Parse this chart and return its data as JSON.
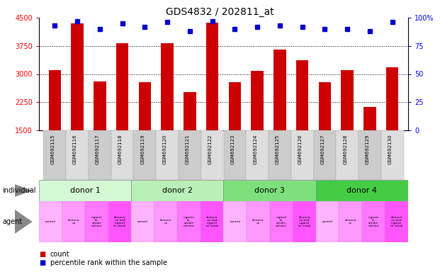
{
  "title": "GDS4832 / 202811_at",
  "samples": [
    "GSM692115",
    "GSM692116",
    "GSM692117",
    "GSM692118",
    "GSM692119",
    "GSM692120",
    "GSM692121",
    "GSM692122",
    "GSM692123",
    "GSM692124",
    "GSM692125",
    "GSM692126",
    "GSM692127",
    "GSM692128",
    "GSM692129",
    "GSM692130"
  ],
  "counts": [
    3100,
    4350,
    2800,
    3820,
    2780,
    3820,
    2520,
    4370,
    2780,
    3080,
    3660,
    3360,
    2780,
    3100,
    2120,
    3180
  ],
  "percentile_ranks": [
    93,
    97,
    90,
    95,
    92,
    96,
    88,
    97,
    90,
    92,
    93,
    92,
    90,
    90,
    88,
    96
  ],
  "bar_color": "#cc0000",
  "dot_color": "#0000cc",
  "ylim_left": [
    1500,
    4500
  ],
  "ylim_right": [
    0,
    100
  ],
  "yticks_left": [
    1500,
    2250,
    3000,
    3750,
    4500
  ],
  "yticks_right": [
    0,
    25,
    50,
    75,
    100
  ],
  "donor_labels": [
    "donor 1",
    "donor 2",
    "donor 3",
    "donor 4"
  ],
  "donor_colors": [
    "#d4f7d4",
    "#b8f0b8",
    "#7de07d",
    "#44cc44"
  ],
  "agent_labels": [
    "control",
    "rhinovir\nus",
    "cigaret\nte\nsmoke\nextract",
    "rhinovir\nus and\ncigaret\nte smok"
  ],
  "agent_colors": [
    "#ffb3ff",
    "#ff99ff",
    "#ff77ff",
    "#ff55ff"
  ],
  "bg_color": "#ffffff",
  "grid_color": "#888888",
  "bar_width": 0.55,
  "label_row_bg": "#c8c8c8",
  "title_fontsize": 10
}
